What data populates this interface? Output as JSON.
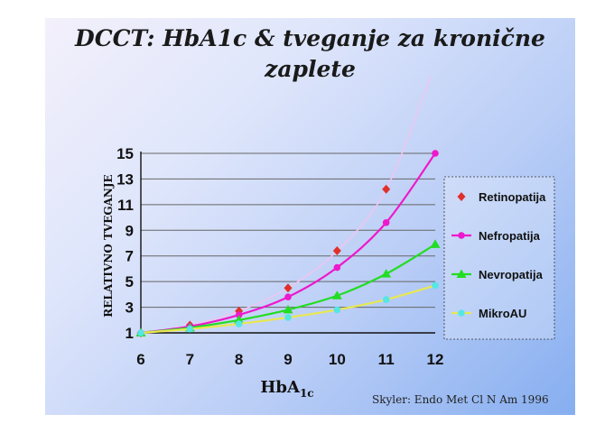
{
  "title_line1": "DCCT: HbA1c & tveganje za kronične",
  "title_line2": "zaplete",
  "source": "Skyler: Endo Met Cl N Am 1996",
  "chart_data": {
    "type": "line",
    "x": [
      6,
      7,
      8,
      9,
      10,
      11,
      12
    ],
    "xlabel": "HbA",
    "xlabel_sub": "1c",
    "ylabel": "RELATIVNO TVEGANJE",
    "yticks": [
      1,
      3,
      5,
      7,
      9,
      11,
      13,
      15
    ],
    "xlim": [
      6,
      12
    ],
    "ylim": [
      1,
      15
    ],
    "grid": "horizontal",
    "legend_position": "right",
    "series": [
      {
        "name": "Retinopatija",
        "marker": "diamond",
        "color": "#e0302a",
        "curve_color": "#ecc6f0",
        "values": [
          1.0,
          1.6,
          2.7,
          4.5,
          7.4,
          12.2,
          22.0
        ]
      },
      {
        "name": "Nefropatija",
        "marker": "circle",
        "color": "#ee18cc",
        "values": [
          1.0,
          1.5,
          2.4,
          3.8,
          6.1,
          9.6,
          15.0
        ]
      },
      {
        "name": "Nevropatija",
        "marker": "triangle",
        "color": "#22dd22",
        "values": [
          1.0,
          1.4,
          2.0,
          2.8,
          3.9,
          5.6,
          7.9
        ]
      },
      {
        "name": "MikroAU",
        "marker": "circle",
        "color": "#e8e850",
        "marker_color": "#55e6e6",
        "values": [
          1.0,
          1.3,
          1.7,
          2.2,
          2.8,
          3.6,
          4.7
        ]
      }
    ]
  }
}
